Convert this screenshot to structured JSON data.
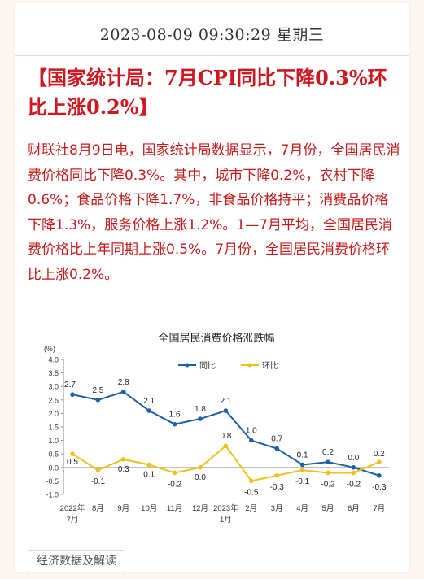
{
  "article": {
    "timestamp": "2023-08-09 09:30:29 星期三",
    "headline": "【国家统计局：7月CPI同比下降0.3%环比上涨0.2%】",
    "body": "财联社8月9日电，国家统计局数据显示，7月份，全国居民消费价格同比下降0.3%。其中，城市下降0.2%，农村下降0.6%；食品价格下降1.7%，非食品价格持平；消费品价格下降1.3%，服务价格上涨1.2%。1—7月平均，全国居民消费价格比上年同期上涨0.5%。7月份，全国居民消费价格环比上涨0.2%。",
    "tag": "经济数据及解读"
  },
  "chart_data": {
    "type": "line",
    "title": "全国居民消费价格涨跌幅",
    "unit_label": "(%)",
    "ylim": [
      -1.0,
      4.0
    ],
    "yticks": [
      "4.0",
      "3.5",
      "3.0",
      "2.5",
      "2.0",
      "1.5",
      "1.0",
      "0.5",
      "0.0",
      "-0.5",
      "-1.0"
    ],
    "categories": [
      "2022年7月",
      "8月",
      "9月",
      "10月",
      "11月",
      "12月",
      "2023年1月",
      "2月",
      "3月",
      "4月",
      "5月",
      "6月",
      "7月"
    ],
    "xticks": [
      [
        "2022年",
        "7月"
      ],
      [
        "8月"
      ],
      [
        "9月"
      ],
      [
        "10月"
      ],
      [
        "11月"
      ],
      [
        "12月"
      ],
      [
        "2023年",
        "1月"
      ],
      [
        "2月"
      ],
      [
        "3月"
      ],
      [
        "4月"
      ],
      [
        "5月"
      ],
      [
        "6月"
      ],
      [
        "7月"
      ]
    ],
    "legend_position": "top",
    "series": [
      {
        "name": "同比",
        "color": "#1f5fa8",
        "values": [
          2.7,
          2.5,
          2.8,
          2.1,
          1.6,
          1.8,
          2.1,
          1.0,
          0.7,
          0.1,
          0.2,
          0.0,
          -0.3
        ],
        "labels": [
          "2.7",
          "2.5",
          "2.8",
          "2.1",
          "1.6",
          "1.8",
          "2.1",
          "1.0",
          "0.7",
          "0.1",
          "0.2",
          "0.0",
          "-0.3"
        ]
      },
      {
        "name": "环比",
        "color": "#f2c01d",
        "values": [
          0.5,
          -0.1,
          0.3,
          0.1,
          -0.2,
          0.0,
          0.8,
          -0.5,
          -0.3,
          -0.1,
          -0.2,
          -0.2,
          0.2
        ],
        "labels": [
          "0.5",
          "-0.1",
          "0.3",
          "0.1",
          "-0.2",
          "0.0",
          "0.8",
          "-0.5",
          "-0.3",
          "-0.1",
          "-0.2",
          "-0.2",
          "0.2"
        ]
      }
    ]
  }
}
